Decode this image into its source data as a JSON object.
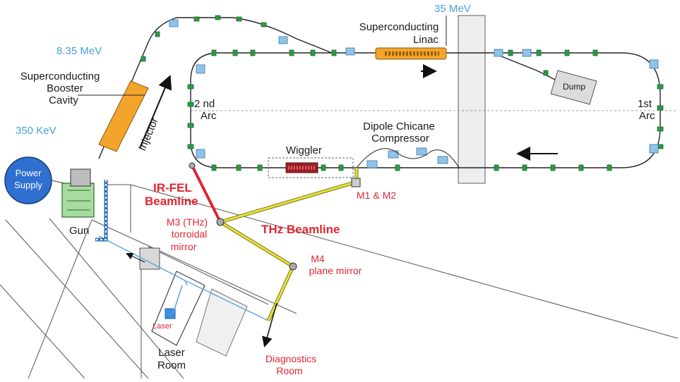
{
  "labels": {
    "energy_35": "35 MeV",
    "superconducting_linac": [
      "Superconducting",
      "Linac"
    ],
    "energy_835": "8.35 MeV",
    "booster_cavity": [
      "Superconducting",
      "Booster",
      "Cavity"
    ],
    "arc2": [
      "2 nd",
      "Arc"
    ],
    "arc1": [
      "1st",
      "Arc"
    ],
    "injector": "Injector",
    "energy_350": "350 KeV",
    "dump": "Dump",
    "dipole_chicane": [
      "Dipole Chicane",
      "Compressor"
    ],
    "wiggler": "Wiggler",
    "power_supply": [
      "Power",
      "Supply"
    ],
    "irfel_beamline": [
      "IR-FEL",
      "Beamline"
    ],
    "m1_m2": "M1 & M2",
    "gun": "Gun",
    "m3": [
      "M3 (THz)",
      "torroidal",
      "mirror"
    ],
    "thz_beamline": "THz Beamline",
    "m4": [
      "M4",
      "plane mirror"
    ],
    "laser": "Laser",
    "laser_room": [
      "Laser",
      "Room"
    ],
    "diagnostics_room": [
      "Diagnostics",
      "Room"
    ]
  },
  "colors": {
    "energy_text": "#4a9fd8",
    "beamline_red": "#e0262f",
    "thz_yellow": "#e8e23a",
    "cavity_orange": "#f3a52b",
    "quad_green": "#2c9a4a",
    "dipole_blue": "#8fc3e8",
    "power_supply_blue": "#2f6fd0",
    "gun_green": "#a7dca0"
  }
}
